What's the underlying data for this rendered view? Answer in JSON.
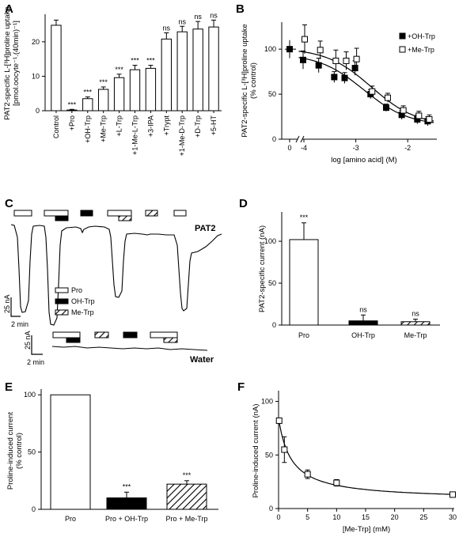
{
  "panels": {
    "A": "A",
    "B": "B",
    "C": "C",
    "D": "D",
    "E": "E",
    "F": "F"
  },
  "colors": {
    "ink": "#000000",
    "open": "#ffffff",
    "filled": "#000000"
  },
  "chart_data": [
    {
      "id": "A",
      "type": "bar",
      "ylabel_lines": [
        "PAT2-specific L-[³H]proline uptake",
        "[pmol.oocyte⁻¹.(40min)⁻¹]"
      ],
      "ylim": [
        0,
        28
      ],
      "yticks": [
        0,
        10,
        20
      ],
      "categories": [
        "Control",
        "+Pro",
        "+OH-Trp",
        "+Me-Trp",
        "+L-Trp",
        "+1-Me-L-Trp",
        "+3-IPA",
        "+Trypt",
        "+1-Me-D-Trp",
        "+D-Trp",
        "+5-HT"
      ],
      "values": [
        24.8,
        0.2,
        3.5,
        6.2,
        9.6,
        11.9,
        12.3,
        20.8,
        22.9,
        23.7,
        24.3
      ],
      "errors": [
        1.5,
        0.2,
        0.5,
        0.7,
        1.0,
        1.3,
        0.9,
        1.8,
        1.6,
        2.2,
        2.0
      ],
      "significance": [
        "",
        "***",
        "***",
        "***",
        "***",
        "***",
        "***",
        "ns",
        "ns",
        "ns",
        "ns"
      ]
    },
    {
      "id": "B",
      "type": "scatter",
      "xlabel": "log [amino acid] (M)",
      "ylabel_lines": [
        "PAT2-specific L-[³H]proline uptake",
        "(% control)"
      ],
      "ylim": [
        0,
        130
      ],
      "yticks": [
        0,
        50,
        100
      ],
      "xticks": [
        {
          "label": "0"
        },
        {
          "label": "-4",
          "value": -4
        },
        {
          "label": "-3",
          "value": -3
        },
        {
          "label": "-2",
          "value": -2
        }
      ],
      "xlim": [
        -4,
        -1.5
      ],
      "control_point": {
        "y": 100,
        "err": 10
      },
      "series": [
        {
          "name": "+OH-Trp",
          "marker": "filled-square",
          "x": [
            -4,
            -3.7,
            -3.4,
            -3.2,
            -3.0,
            -2.7,
            -2.4,
            -2.1,
            -1.8,
            -1.6
          ],
          "y": [
            88,
            82,
            69,
            68,
            79,
            50,
            35,
            27,
            22,
            20
          ],
          "err": [
            10,
            8,
            6,
            6,
            8,
            5,
            4,
            5,
            5,
            5
          ]
        },
        {
          "name": "+Me-Trp",
          "marker": "open-square",
          "x": [
            -4,
            -3.7,
            -3.4,
            -3.2,
            -3.0,
            -2.7,
            -2.4,
            -2.1,
            -1.8,
            -1.6
          ],
          "y": [
            111,
            99,
            87,
            87,
            89,
            53,
            46,
            32,
            26,
            22
          ],
          "err": [
            16,
            10,
            12,
            10,
            12,
            6,
            5,
            5,
            5,
            5
          ]
        }
      ],
      "fits": [
        {
          "series": "+OH-Trp",
          "log_ic50": -2.85,
          "top": 95,
          "bottom": 15
        },
        {
          "series": "+Me-Trp",
          "log_ic50": -2.7,
          "top": 101,
          "bottom": 15
        }
      ]
    },
    {
      "id": "D",
      "type": "bar",
      "ylabel": "PAT2-specific current (nA)",
      "ylim": [
        0,
        135
      ],
      "yticks": [
        0,
        50,
        100
      ],
      "categories": [
        "Pro",
        "OH-Trp",
        "Me-Trp"
      ],
      "values": [
        102,
        5,
        4
      ],
      "errors": [
        20,
        7,
        3
      ],
      "fills": [
        "open",
        "filled",
        "hatched"
      ],
      "significance": [
        "***",
        "ns",
        "ns"
      ]
    },
    {
      "id": "E",
      "type": "bar",
      "ylabel_lines": [
        "Proline-induced current",
        "(% control)"
      ],
      "ylim": [
        0,
        105
      ],
      "yticks": [
        0,
        50,
        100
      ],
      "categories": [
        "Pro",
        "Pro + OH-Trp",
        "Pro + Me-Trp"
      ],
      "values": [
        100,
        10,
        22
      ],
      "errors": [
        0,
        5,
        3
      ],
      "fills": [
        "open",
        "filled",
        "hatched"
      ],
      "significance": [
        "",
        "***",
        "***"
      ]
    },
    {
      "id": "F",
      "type": "scatter",
      "xlabel": "[Me-Trp] (mM)",
      "ylabel": "Proline-induced current (nA)",
      "xlim": [
        0,
        30
      ],
      "ylim": [
        0,
        110
      ],
      "xticks": [
        0,
        5,
        10,
        15,
        20,
        25,
        30
      ],
      "yticks": [
        0,
        50,
        100
      ],
      "x": [
        0.1,
        1,
        5,
        10,
        30
      ],
      "y": [
        82,
        55,
        32,
        24,
        13
      ],
      "err": [
        0,
        12,
        4,
        3,
        0
      ]
    }
  ],
  "traces": {
    "pat2_label": "PAT2",
    "water_label": "Water",
    "legend": [
      "Pro",
      "OH-Trp",
      "Me-Trp"
    ],
    "scale_main": {
      "current": "25 nA",
      "time": "2 min"
    },
    "scale_water": {
      "current": "25 nA",
      "time": "2 min"
    }
  }
}
